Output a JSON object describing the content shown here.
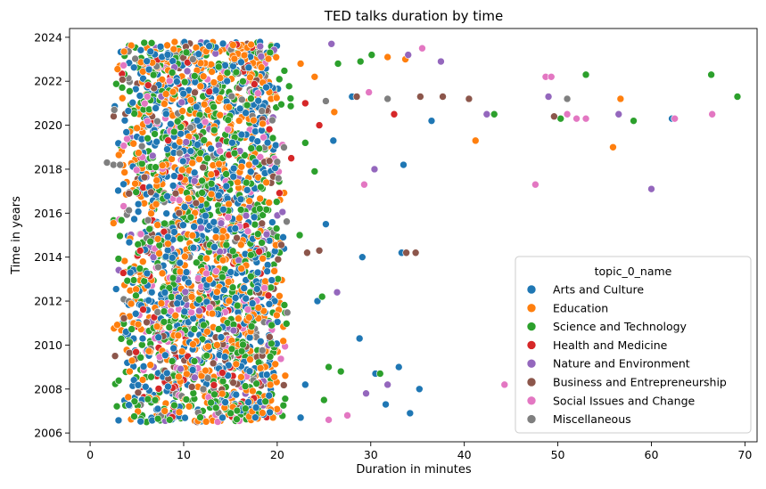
{
  "chart_data": {
    "type": "scatter",
    "title": "TED talks duration by time",
    "xlabel": "Duration in minutes",
    "ylabel": "Time in years",
    "xlim": [
      -2.2,
      71.3
    ],
    "ylim": [
      2005.6,
      2024.4
    ],
    "xticks": [
      0,
      10,
      20,
      30,
      40,
      50,
      60,
      70
    ],
    "yticks": [
      2006,
      2008,
      2010,
      2012,
      2014,
      2016,
      2018,
      2020,
      2022,
      2024
    ],
    "grid": false,
    "legend": {
      "title": "topic_0_name",
      "placement": "lower-right",
      "entries": [
        {
          "name": "Arts and Culture",
          "color": "#1f77b4"
        },
        {
          "name": "Education",
          "color": "#ff7f0e"
        },
        {
          "name": "Science and Technology",
          "color": "#2ca02c"
        },
        {
          "name": "Health and Medicine",
          "color": "#d62728"
        },
        {
          "name": "Nature and Environment",
          "color": "#9467bd"
        },
        {
          "name": "Business and Entrepreneurship",
          "color": "#8c564b"
        },
        {
          "name": "Social Issues and Change",
          "color": "#e377c2"
        },
        {
          "name": "Miscellaneous",
          "color": "#7f7f7f"
        }
      ]
    },
    "dense_region": {
      "x_range": [
        1.5,
        22
      ],
      "y_range": [
        2006.5,
        2023.8
      ],
      "note": "thousands of overlapping points"
    },
    "series": [
      {
        "name": "Arts and Culture",
        "color": "#1f77b4",
        "points": [
          [
            36.5,
            2020.2
          ],
          [
            62.2,
            2020.3
          ],
          [
            33.5,
            2018.2
          ],
          [
            33.3,
            2014.2
          ],
          [
            29.1,
            2014.0
          ],
          [
            25.2,
            2015.5
          ],
          [
            28.8,
            2010.3
          ],
          [
            30.5,
            2008.7
          ],
          [
            33.0,
            2009.0
          ],
          [
            35.2,
            2008.0
          ],
          [
            31.6,
            2007.3
          ],
          [
            34.2,
            2006.9
          ],
          [
            28.0,
            2021.3
          ],
          [
            26.0,
            2019.3
          ],
          [
            24.3,
            2012.0
          ],
          [
            22.5,
            2006.7
          ],
          [
            23.0,
            2008.2
          ]
        ]
      },
      {
        "name": "Education",
        "color": "#ff7f0e",
        "points": [
          [
            31.8,
            2023.1
          ],
          [
            33.7,
            2023.0
          ],
          [
            56.7,
            2021.2
          ],
          [
            41.2,
            2019.3
          ],
          [
            55.9,
            2019.0
          ],
          [
            26.1,
            2020.6
          ],
          [
            24.0,
            2022.2
          ],
          [
            22.5,
            2022.8
          ]
        ]
      },
      {
        "name": "Science and Technology",
        "color": "#2ca02c",
        "points": [
          [
            53.0,
            2022.3
          ],
          [
            66.4,
            2022.3
          ],
          [
            69.2,
            2021.3
          ],
          [
            50.3,
            2020.3
          ],
          [
            58.1,
            2020.2
          ],
          [
            43.2,
            2020.5
          ],
          [
            30.1,
            2023.2
          ],
          [
            28.9,
            2022.9
          ],
          [
            26.5,
            2022.8
          ],
          [
            24.0,
            2017.9
          ],
          [
            24.8,
            2012.2
          ],
          [
            25.5,
            2009.0
          ],
          [
            26.8,
            2008.8
          ],
          [
            31.0,
            2008.7
          ],
          [
            25.0,
            2007.5
          ],
          [
            8.5,
            2006.6
          ],
          [
            23.0,
            2019.2
          ],
          [
            22.4,
            2015.0
          ]
        ]
      },
      {
        "name": "Health and Medicine",
        "color": "#d62728",
        "points": [
          [
            32.5,
            2020.5
          ],
          [
            24.5,
            2020.0
          ],
          [
            23.0,
            2021.0
          ],
          [
            21.5,
            2018.5
          ]
        ]
      },
      {
        "name": "Nature and Environment",
        "color": "#9467bd",
        "points": [
          [
            37.5,
            2022.9
          ],
          [
            49.0,
            2021.3
          ],
          [
            30.4,
            2018.0
          ],
          [
            60.0,
            2017.1
          ],
          [
            56.5,
            2020.5
          ],
          [
            26.4,
            2012.4
          ],
          [
            34.0,
            2023.2
          ],
          [
            25.8,
            2023.7
          ],
          [
            42.4,
            2020.5
          ],
          [
            29.5,
            2007.8
          ],
          [
            31.8,
            2008.2
          ]
        ]
      },
      {
        "name": "Business and Entrepreneurship",
        "color": "#8c564b",
        "points": [
          [
            35.3,
            2021.3
          ],
          [
            37.7,
            2021.3
          ],
          [
            40.5,
            2021.2
          ],
          [
            49.6,
            2020.4
          ],
          [
            33.8,
            2014.2
          ],
          [
            34.8,
            2014.2
          ],
          [
            23.2,
            2014.2
          ],
          [
            24.5,
            2014.3
          ],
          [
            28.5,
            2021.3
          ]
        ]
      },
      {
        "name": "Social Issues and Change",
        "color": "#e377c2",
        "points": [
          [
            35.5,
            2023.5
          ],
          [
            48.7,
            2022.2
          ],
          [
            49.3,
            2022.2
          ],
          [
            51.0,
            2020.5
          ],
          [
            52.0,
            2020.3
          ],
          [
            53.0,
            2020.3
          ],
          [
            62.5,
            2020.3
          ],
          [
            66.5,
            2020.5
          ],
          [
            47.6,
            2017.3
          ],
          [
            29.3,
            2017.3
          ],
          [
            44.3,
            2008.2
          ],
          [
            27.5,
            2006.8
          ],
          [
            25.5,
            2006.6
          ],
          [
            29.8,
            2021.5
          ]
        ]
      },
      {
        "name": "Miscellaneous",
        "color": "#7f7f7f",
        "points": [
          [
            31.8,
            2021.2
          ],
          [
            51.0,
            2021.2
          ],
          [
            25.2,
            2021.1
          ],
          [
            1.8,
            2018.3
          ],
          [
            2.5,
            2018.2
          ],
          [
            3.2,
            2018.2
          ]
        ]
      }
    ]
  }
}
